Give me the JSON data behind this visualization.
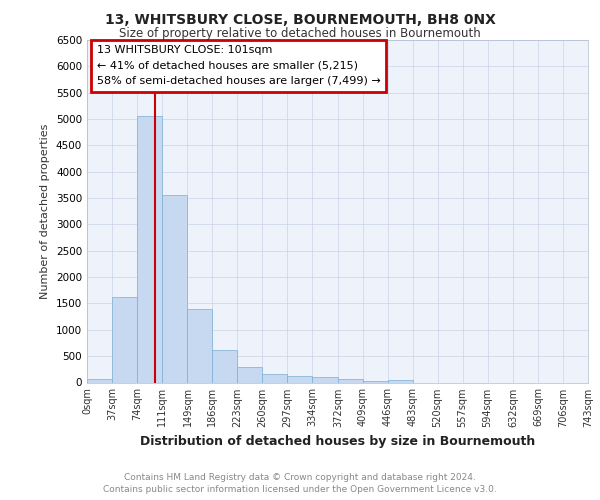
{
  "title": "13, WHITSBURY CLOSE, BOURNEMOUTH, BH8 0NX",
  "subtitle": "Size of property relative to detached houses in Bournemouth",
  "xlabel": "Distribution of detached houses by size in Bournemouth",
  "ylabel": "Number of detached properties",
  "footnote1": "Contains HM Land Registry data © Crown copyright and database right 2024.",
  "footnote2": "Contains public sector information licensed under the Open Government Licence v3.0.",
  "annotation_line1": "13 WHITSBURY CLOSE: 101sqm",
  "annotation_line2": "← 41% of detached houses are smaller (5,215)",
  "annotation_line3": "58% of semi-detached houses are larger (7,499) →",
  "bar_edges": [
    0,
    37,
    74,
    111,
    149,
    186,
    223,
    260,
    297,
    334,
    372,
    409,
    446,
    483,
    520,
    557,
    594,
    632,
    669,
    706,
    743
  ],
  "bar_values": [
    70,
    1620,
    5060,
    3560,
    1400,
    610,
    300,
    160,
    130,
    100,
    60,
    30,
    50,
    0,
    0,
    0,
    0,
    0,
    0,
    0
  ],
  "bar_color": "#c6d9f0",
  "bar_edge_color": "#7bafd4",
  "vline_x": 101,
  "vline_color": "#cc0000",
  "ylim": [
    0,
    6500
  ],
  "yticks": [
    0,
    500,
    1000,
    1500,
    2000,
    2500,
    3000,
    3500,
    4000,
    4500,
    5000,
    5500,
    6000,
    6500
  ],
  "grid_color": "#c8d4e8",
  "bg_color": "#eef2fa",
  "annotation_box_color": "#ffffff",
  "annotation_box_edge": "#cc0000"
}
